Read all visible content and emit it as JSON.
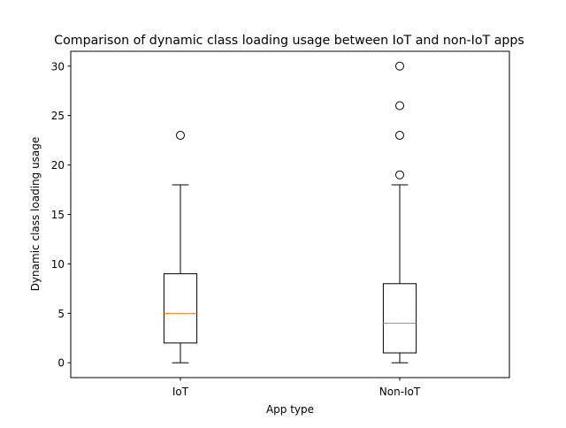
{
  "chart_data": {
    "type": "box",
    "title": "Comparison of dynamic class loading usage between IoT and non-IoT apps",
    "xlabel": "App type",
    "ylabel": "Dynamic class loading usage",
    "ylim": [
      -1.5,
      31.5
    ],
    "yticks": [
      0,
      5,
      10,
      15,
      20,
      25,
      30
    ],
    "grid": false,
    "categories": [
      "IoT",
      "Non-IoT"
    ],
    "boxes": [
      {
        "label": "IoT",
        "whisker_low": 0,
        "q1": 2,
        "median": 5,
        "q3": 9,
        "whisker_high": 18,
        "outliers": [
          23
        ]
      },
      {
        "label": "Non-IoT",
        "whisker_low": 0,
        "q1": 1,
        "median": 4,
        "q3": 8,
        "whisker_high": 18,
        "outliers": [
          19,
          23,
          26,
          30
        ]
      }
    ],
    "colors": {
      "median": "#ff7f0e",
      "box": "#000000",
      "background": "#ffffff"
    }
  }
}
